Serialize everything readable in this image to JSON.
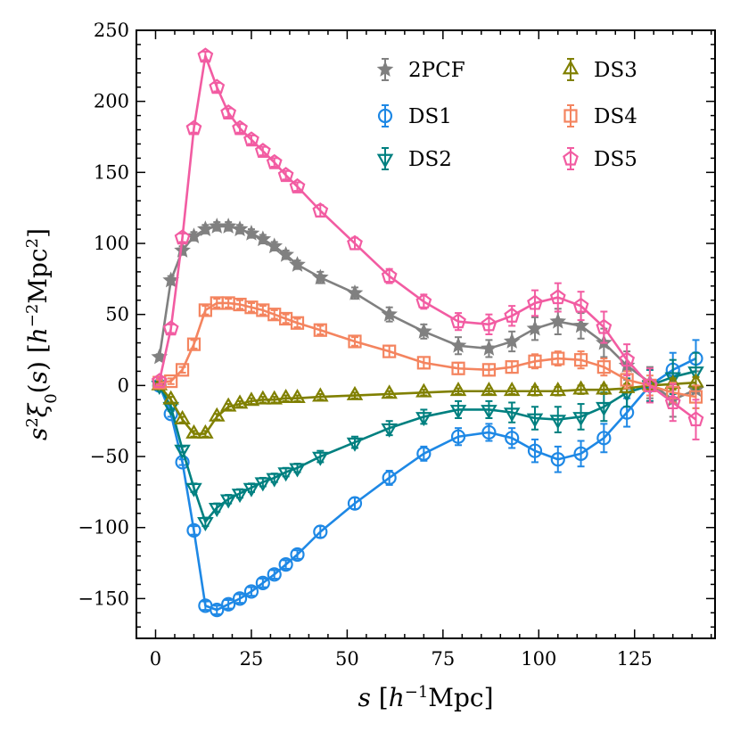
{
  "chart_data": {
    "type": "line",
    "title": "",
    "xlabel": "s [h^-1 Mpc]",
    "ylabel": "s^2 ξ0(s) [h^-2 Mpc^2]",
    "xlim": [
      -5,
      146
    ],
    "ylim": [
      -178,
      250
    ],
    "x_ticks": [
      0,
      25,
      50,
      75,
      100,
      125
    ],
    "y_ticks": [
      -150,
      -100,
      -50,
      0,
      50,
      100,
      150,
      200,
      250
    ],
    "x_tick_labels": [
      "0",
      "25",
      "50",
      "75",
      "100",
      "125"
    ],
    "y_tick_labels": [
      "−150",
      "−100",
      "−50",
      "0",
      "50",
      "100",
      "150",
      "200",
      "250"
    ],
    "legend_position": "top-right",
    "series": [
      {
        "name": "2PCF",
        "color": "#808080",
        "marker": "star",
        "filled": true,
        "x": [
          1,
          4,
          7,
          10,
          13,
          16,
          19,
          22,
          25,
          28,
          31,
          34,
          37,
          43,
          52,
          61,
          70,
          79,
          87,
          93,
          99,
          105,
          111,
          117,
          123,
          129,
          135,
          141
        ],
        "y": [
          20,
          74,
          95,
          105,
          110,
          112,
          112,
          110,
          107,
          103,
          98,
          92,
          85,
          76,
          65,
          50,
          38,
          28,
          26,
          31,
          40,
          45,
          42,
          30,
          14,
          2,
          -10,
          -3
        ],
        "err": [
          2,
          3,
          3,
          3,
          3,
          3,
          3,
          3,
          3,
          3,
          3,
          3,
          3,
          4,
          4,
          5,
          5,
          6,
          6,
          7,
          8,
          9,
          9,
          10,
          10,
          11,
          12,
          13
        ]
      },
      {
        "name": "DS1",
        "color": "#1e88e5",
        "marker": "circle",
        "filled": false,
        "x": [
          1,
          4,
          7,
          10,
          13,
          16,
          19,
          22,
          25,
          28,
          31,
          34,
          37,
          43,
          52,
          61,
          70,
          79,
          87,
          93,
          99,
          105,
          111,
          117,
          123,
          129,
          135,
          141
        ],
        "y": [
          0,
          -20,
          -54,
          -102,
          -155,
          -158,
          -154,
          -150,
          -145,
          -139,
          -133,
          -126,
          -119,
          -103,
          -83,
          -65,
          -48,
          -36,
          -33,
          -37,
          -46,
          -52,
          -48,
          -37,
          -19,
          0,
          11,
          19
        ],
        "err": [
          2,
          2,
          2,
          3,
          3,
          3,
          3,
          3,
          3,
          3,
          3,
          3,
          3,
          4,
          4,
          5,
          5,
          6,
          6,
          7,
          8,
          9,
          9,
          10,
          10,
          11,
          12,
          13
        ]
      },
      {
        "name": "DS2",
        "color": "#008080",
        "marker": "triangle-down",
        "filled": false,
        "x": [
          1,
          4,
          7,
          10,
          13,
          16,
          19,
          22,
          25,
          28,
          31,
          34,
          37,
          43,
          52,
          61,
          70,
          79,
          87,
          93,
          99,
          105,
          111,
          117,
          123,
          129,
          135,
          141
        ],
        "y": [
          0,
          -15,
          -45,
          -72,
          -96,
          -86,
          -80,
          -76,
          -72,
          -68,
          -65,
          -61,
          -58,
          -50,
          -40,
          -30,
          -22,
          -17,
          -17,
          -19,
          -23,
          -24,
          -22,
          -15,
          -5,
          0,
          6,
          10
        ],
        "err": [
          2,
          2,
          2,
          3,
          3,
          3,
          3,
          3,
          3,
          3,
          3,
          3,
          3,
          4,
          4,
          5,
          5,
          6,
          6,
          7,
          8,
          9,
          9,
          10,
          10,
          11,
          12,
          13
        ]
      },
      {
        "name": "DS3",
        "color": "#808000",
        "marker": "triangle-up",
        "filled": false,
        "x": [
          1,
          4,
          7,
          10,
          13,
          16,
          19,
          22,
          25,
          28,
          31,
          34,
          37,
          43,
          52,
          61,
          70,
          79,
          87,
          93,
          99,
          105,
          111,
          117,
          123,
          129,
          135,
          141
        ],
        "y": [
          0,
          -10,
          -24,
          -34,
          -34,
          -22,
          -15,
          -13,
          -11,
          -10,
          -10,
          -9,
          -9,
          -8,
          -7,
          -6,
          -5,
          -4,
          -4,
          -4,
          -4,
          -4,
          -3,
          -3,
          -2,
          0,
          1,
          2
        ],
        "err": [
          2,
          2,
          2,
          2,
          2,
          2,
          2,
          2,
          2,
          2,
          2,
          2,
          2,
          2,
          2,
          2,
          2,
          2,
          2,
          2,
          3,
          3,
          3,
          3,
          3,
          3,
          4,
          4
        ]
      },
      {
        "name": "DS4",
        "color": "#f4845f",
        "marker": "square",
        "filled": false,
        "x": [
          1,
          4,
          7,
          10,
          13,
          16,
          19,
          22,
          25,
          28,
          31,
          34,
          37,
          43,
          52,
          61,
          70,
          79,
          87,
          93,
          99,
          105,
          111,
          117,
          123,
          129,
          135,
          141
        ],
        "y": [
          2,
          3,
          11,
          29,
          53,
          58,
          58,
          57,
          55,
          53,
          50,
          47,
          44,
          39,
          31,
          24,
          16,
          12,
          11,
          13,
          17,
          19,
          18,
          13,
          4,
          0,
          -5,
          -8
        ],
        "err": [
          2,
          2,
          2,
          3,
          3,
          3,
          3,
          3,
          3,
          3,
          3,
          3,
          3,
          3,
          3,
          4,
          4,
          4,
          4,
          4,
          5,
          5,
          6,
          6,
          6,
          7,
          7,
          8
        ]
      },
      {
        "name": "DS5",
        "color": "#f25ca2",
        "marker": "pentagon",
        "filled": false,
        "x": [
          1,
          4,
          7,
          10,
          13,
          16,
          19,
          22,
          25,
          28,
          31,
          34,
          37,
          43,
          52,
          61,
          70,
          79,
          87,
          93,
          99,
          105,
          111,
          117,
          123,
          129,
          135,
          141
        ],
        "y": [
          3,
          40,
          104,
          181,
          232,
          210,
          192,
          181,
          173,
          165,
          157,
          148,
          140,
          123,
          100,
          77,
          59,
          45,
          43,
          49,
          58,
          62,
          56,
          41,
          18,
          0,
          -12,
          -24
        ],
        "err": [
          2,
          3,
          3,
          3,
          3,
          3,
          3,
          3,
          3,
          3,
          3,
          3,
          3,
          4,
          4,
          5,
          5,
          6,
          7,
          7,
          9,
          10,
          10,
          11,
          11,
          12,
          13,
          14
        ]
      }
    ]
  }
}
